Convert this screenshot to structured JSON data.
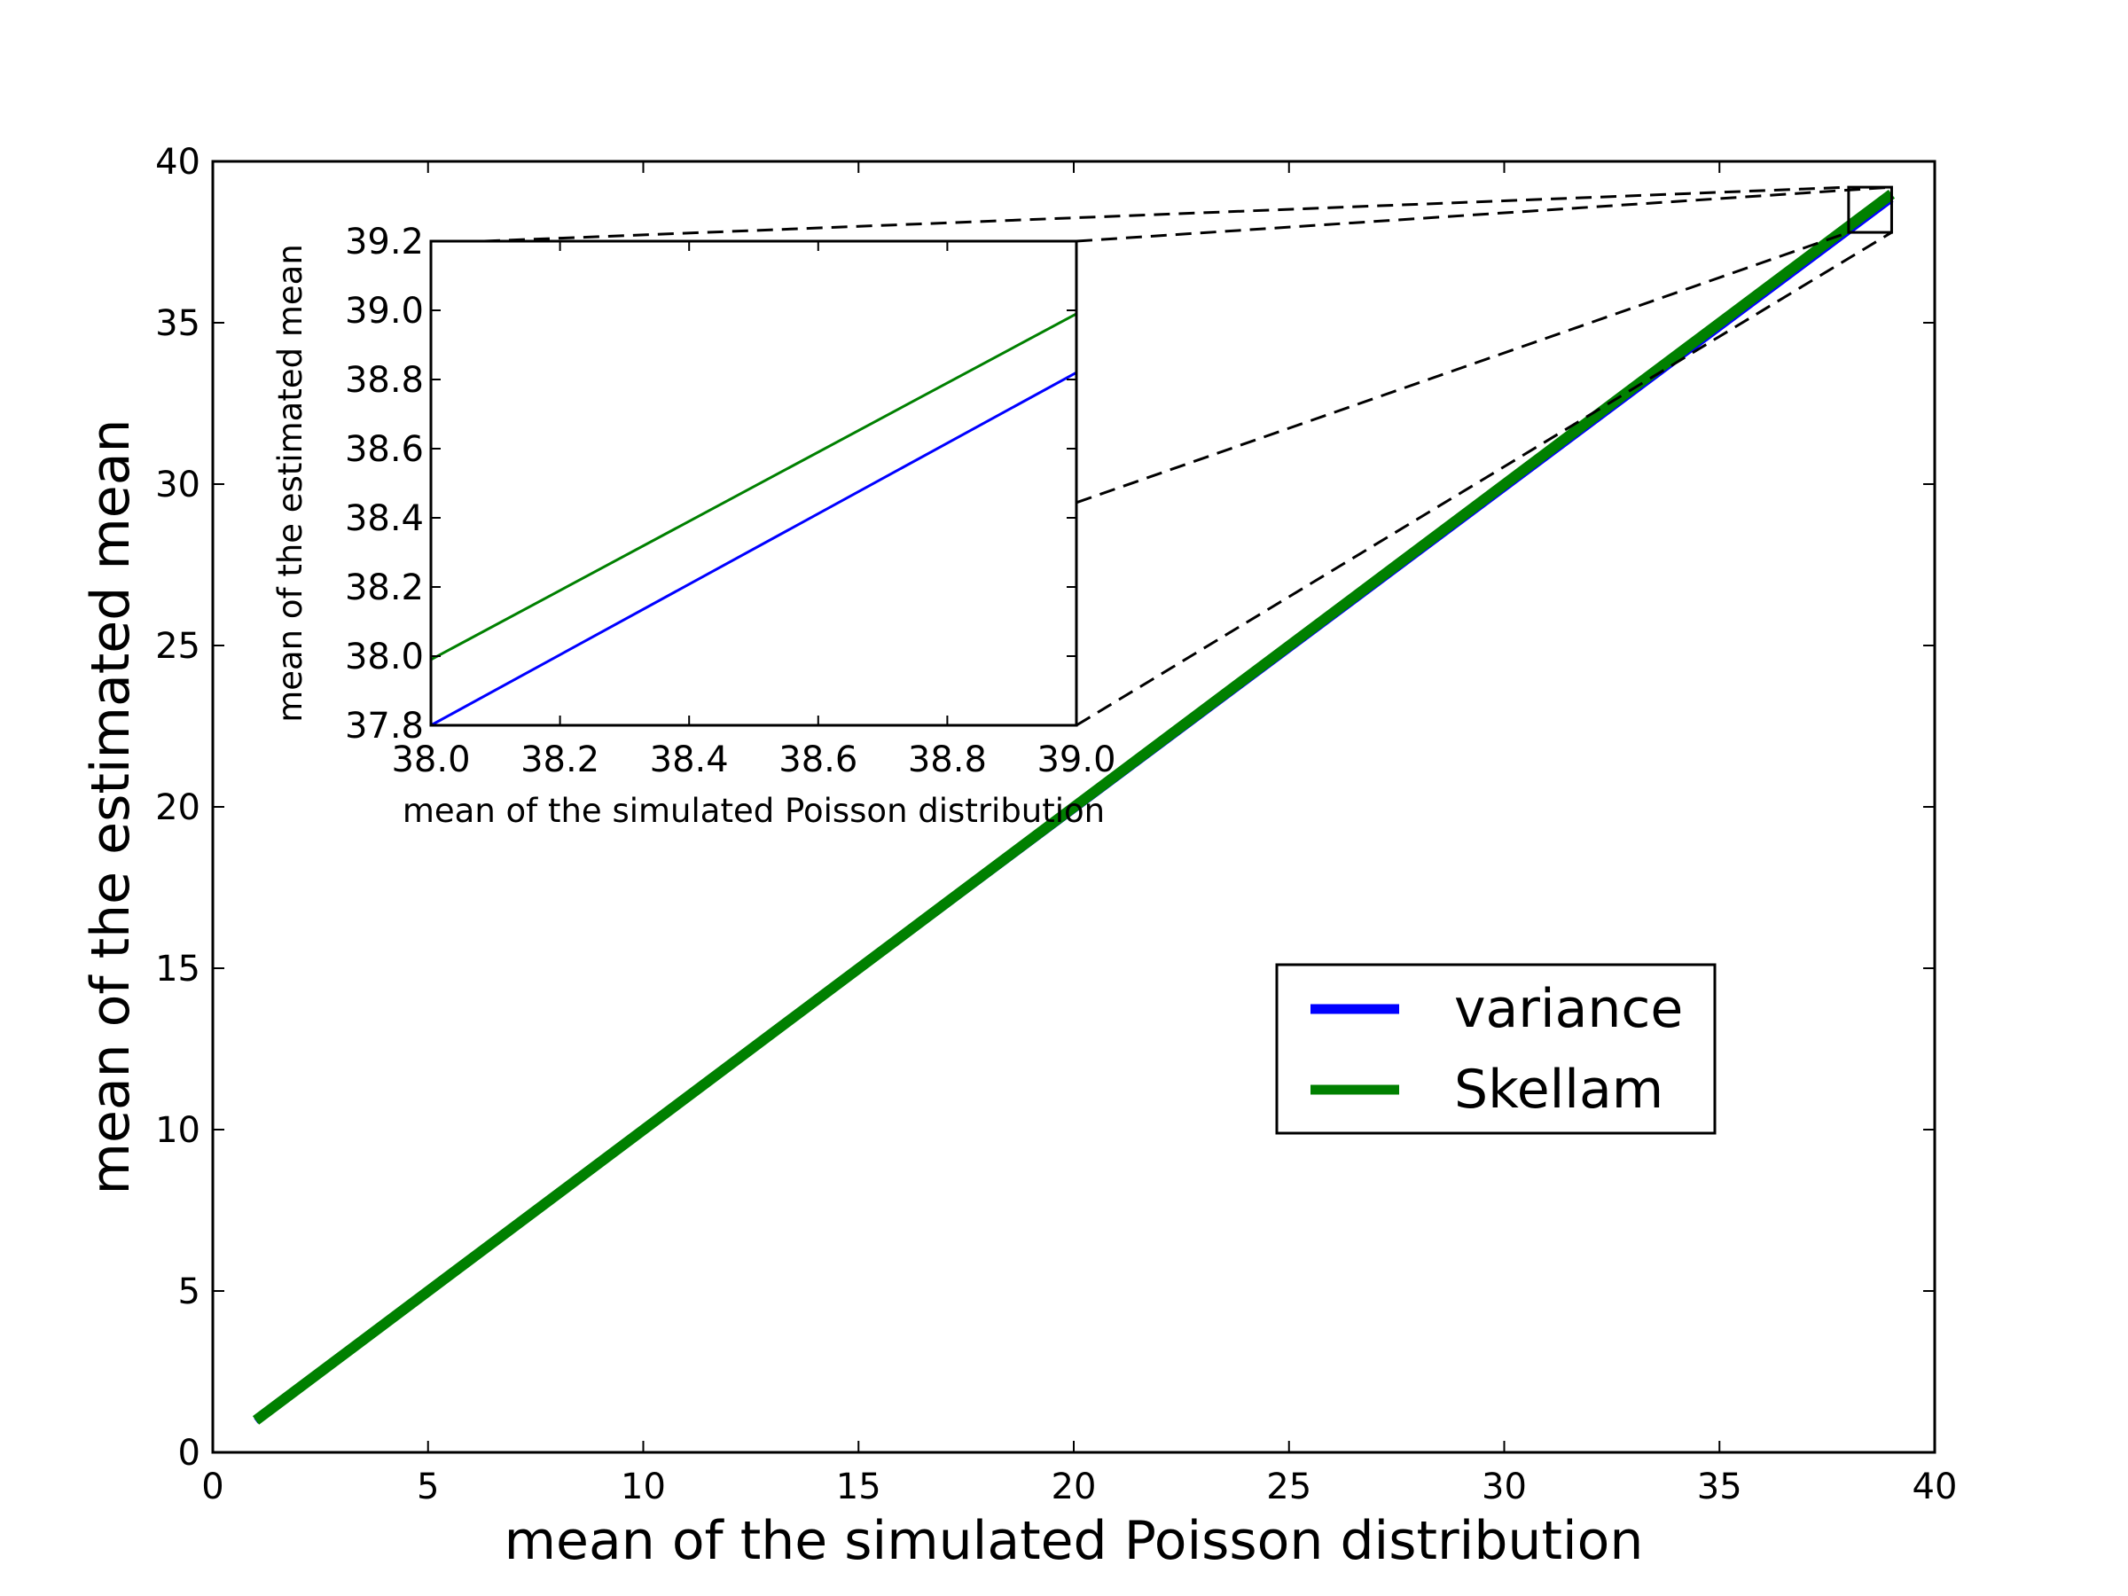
{
  "chart_data": [
    {
      "type": "line",
      "title": "",
      "xlabel": "mean of the simulated Poisson distribution",
      "ylabel": "mean of the estimated mean",
      "xlim": [
        0,
        40
      ],
      "ylim": [
        0,
        40
      ],
      "xticks": [
        0,
        5,
        10,
        15,
        20,
        25,
        30,
        35,
        40
      ],
      "yticks": [
        0,
        5,
        10,
        15,
        20,
        25,
        30,
        35,
        40
      ],
      "x": [
        1,
        39
      ],
      "series": [
        {
          "name": "variance",
          "values": [
            0.97,
            38.82
          ],
          "color": "#0000ff"
        },
        {
          "name": "Skellam",
          "values": [
            0.99,
            38.99
          ],
          "color": "#008000"
        }
      ],
      "legend": {
        "position": "lower-right",
        "labels": [
          "variance",
          "Skellam"
        ]
      },
      "grid": false
    },
    {
      "type": "line",
      "title": "",
      "xlabel": "mean of the simulated Poisson distribution",
      "ylabel": "mean of the estimated mean",
      "xlim": [
        38.0,
        39.0
      ],
      "ylim": [
        37.8,
        39.2
      ],
      "xticks": [
        "38.0",
        "38.2",
        "38.4",
        "38.6",
        "38.8",
        "39.0"
      ],
      "yticks": [
        "37.8",
        "38.0",
        "38.2",
        "38.4",
        "38.6",
        "38.8",
        "39.0",
        "39.2"
      ],
      "x": [
        38.0,
        39.0
      ],
      "series": [
        {
          "name": "variance",
          "values": [
            37.8,
            38.82
          ],
          "color": "#0000ff"
        },
        {
          "name": "Skellam",
          "values": [
            37.99,
            38.99
          ],
          "color": "#008000"
        }
      ],
      "grid": false
    }
  ]
}
